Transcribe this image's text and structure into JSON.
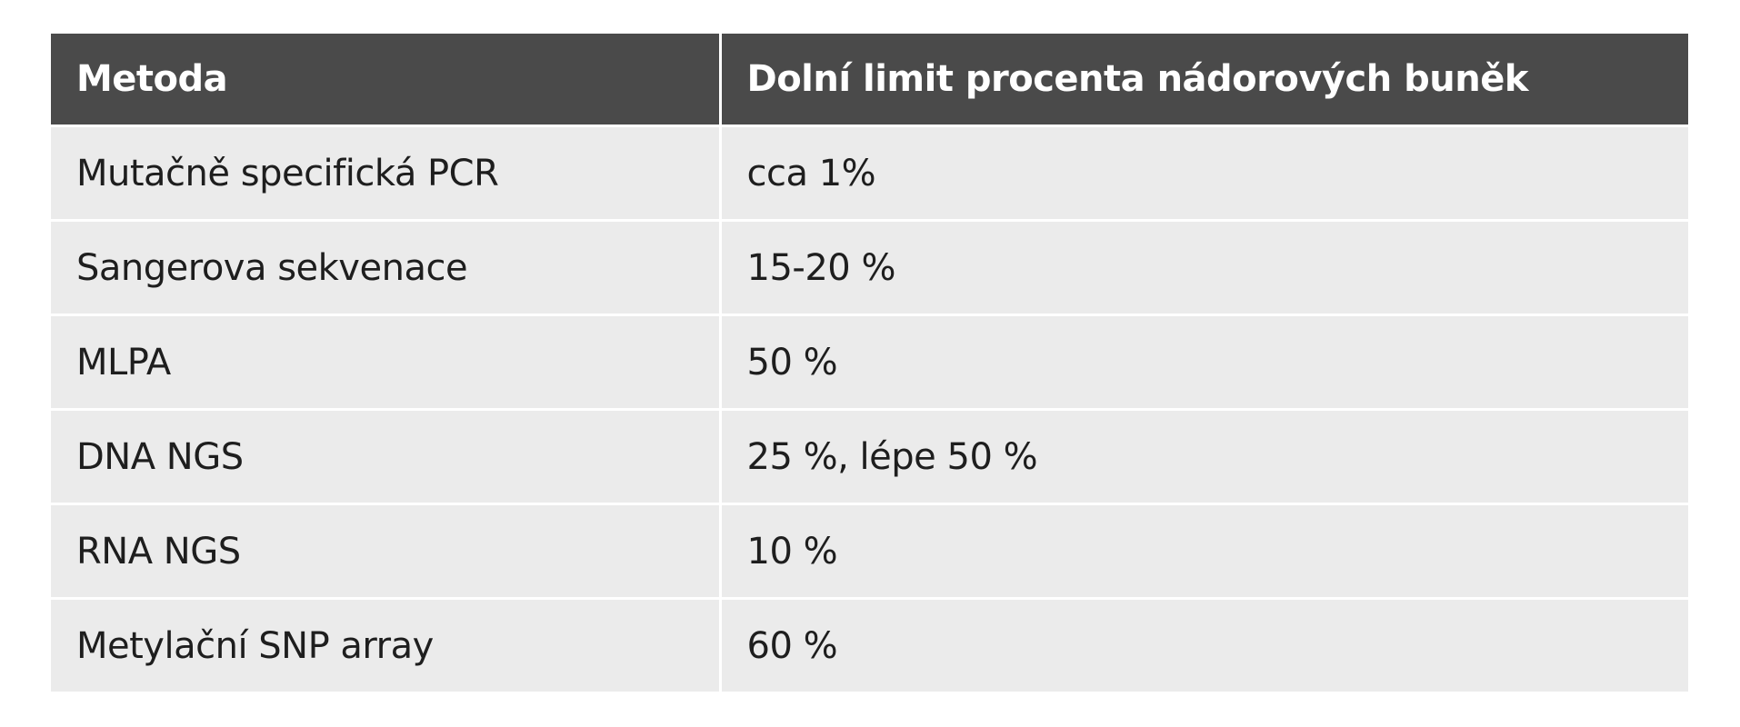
{
  "table": {
    "header": [
      "Metoda",
      "Dolní limit procenta nádorových buněk"
    ],
    "rows": [
      [
        "Mutačně specifická PCR",
        "cca 1%"
      ],
      [
        "Sangerova sekvenace",
        "15-20 %"
      ],
      [
        "MLPA",
        "50 %"
      ],
      [
        "DNA NGS",
        "25 %, lépe 50 %"
      ],
      [
        "RNA NGS",
        "10 %"
      ],
      [
        "Metylační SNP array",
        "60 %"
      ]
    ]
  }
}
